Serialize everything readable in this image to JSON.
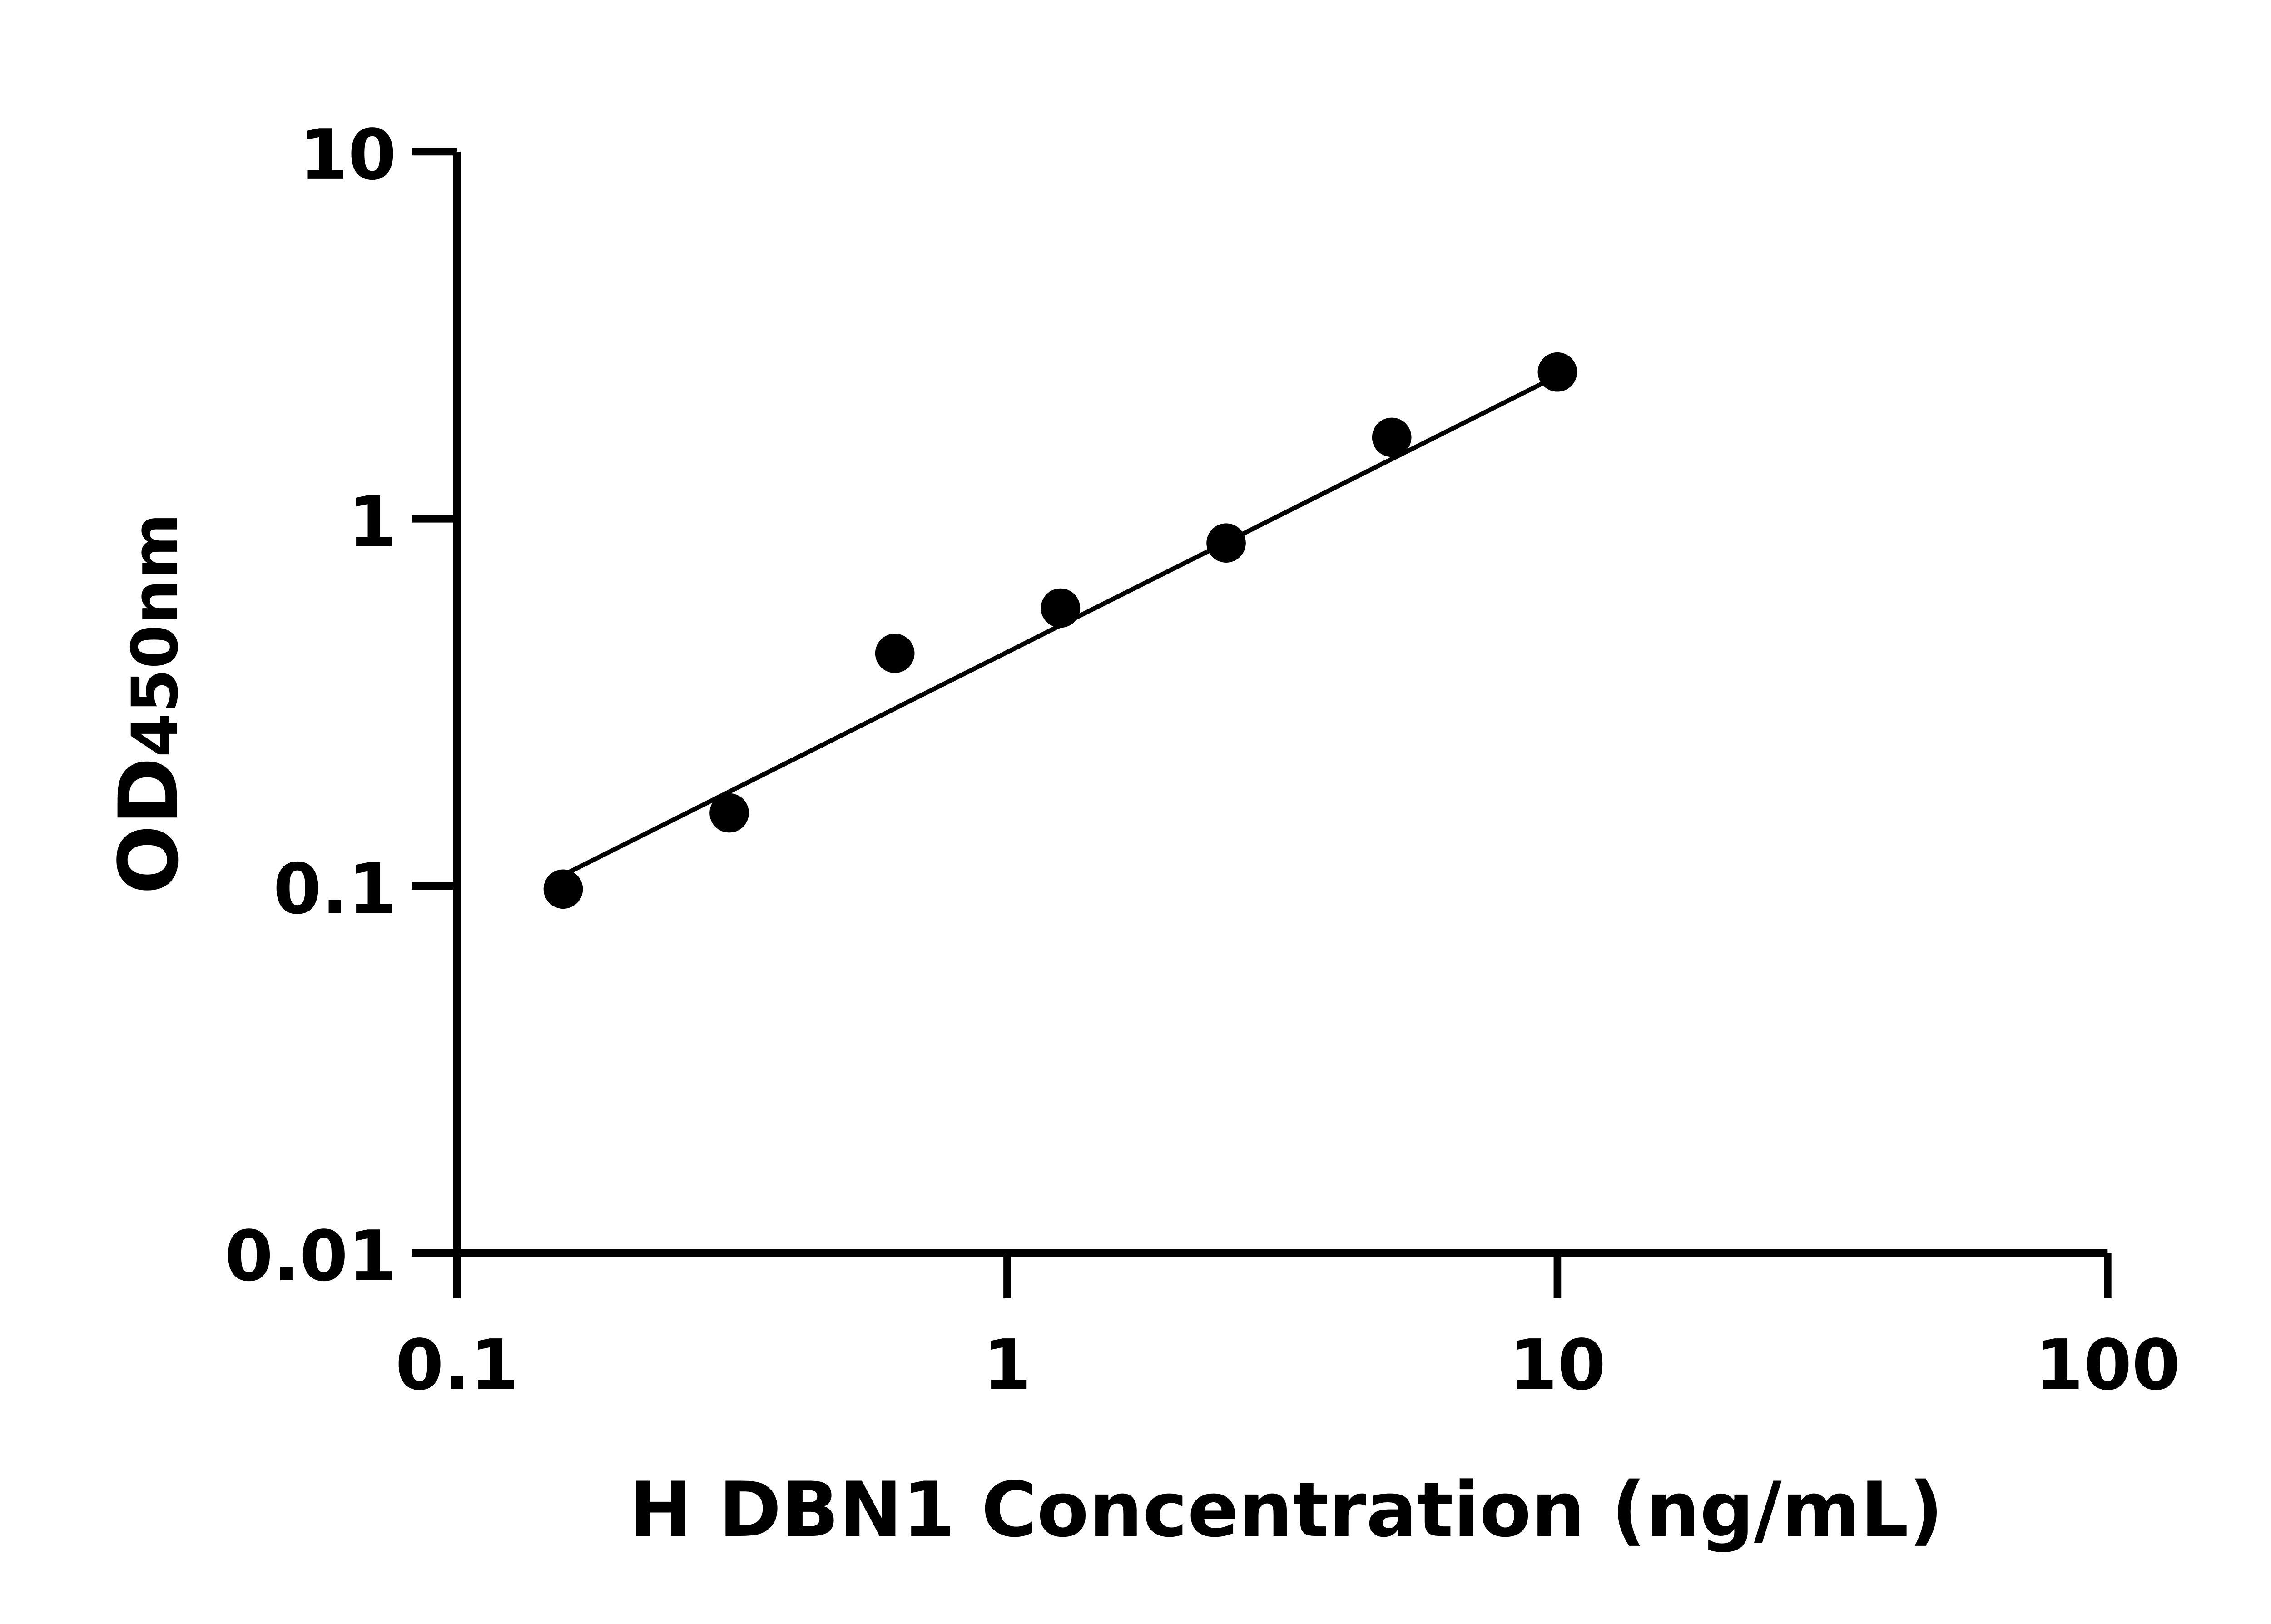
{
  "chart_data": {
    "type": "scatter",
    "title": "",
    "xlabel": "H DBN1 Concentration (ng/mL)",
    "ylabel_main": "OD",
    "ylabel_sub": "450nm",
    "x_scale": "log",
    "y_scale": "log",
    "xlim": [
      0.1,
      100
    ],
    "ylim": [
      0.01,
      10
    ],
    "x_ticks": [
      "0.1",
      "1",
      "10",
      "100"
    ],
    "y_ticks": [
      "0.01",
      "0.1",
      "1",
      "10"
    ],
    "grid": false,
    "points": [
      {
        "x": 0.156,
        "y": 0.098
      },
      {
        "x": 0.3125,
        "y": 0.158
      },
      {
        "x": 0.625,
        "y": 0.43
      },
      {
        "x": 1.25,
        "y": 0.571
      },
      {
        "x": 2.5,
        "y": 0.859
      },
      {
        "x": 5,
        "y": 1.667
      },
      {
        "x": 10,
        "y": 2.51
      }
    ],
    "fit_line": {
      "x": [
        0.156,
        10
      ],
      "y": [
        0.107,
        2.45
      ]
    },
    "colors": {
      "points": "#000000",
      "line": "#000000",
      "axes": "#000000"
    }
  }
}
